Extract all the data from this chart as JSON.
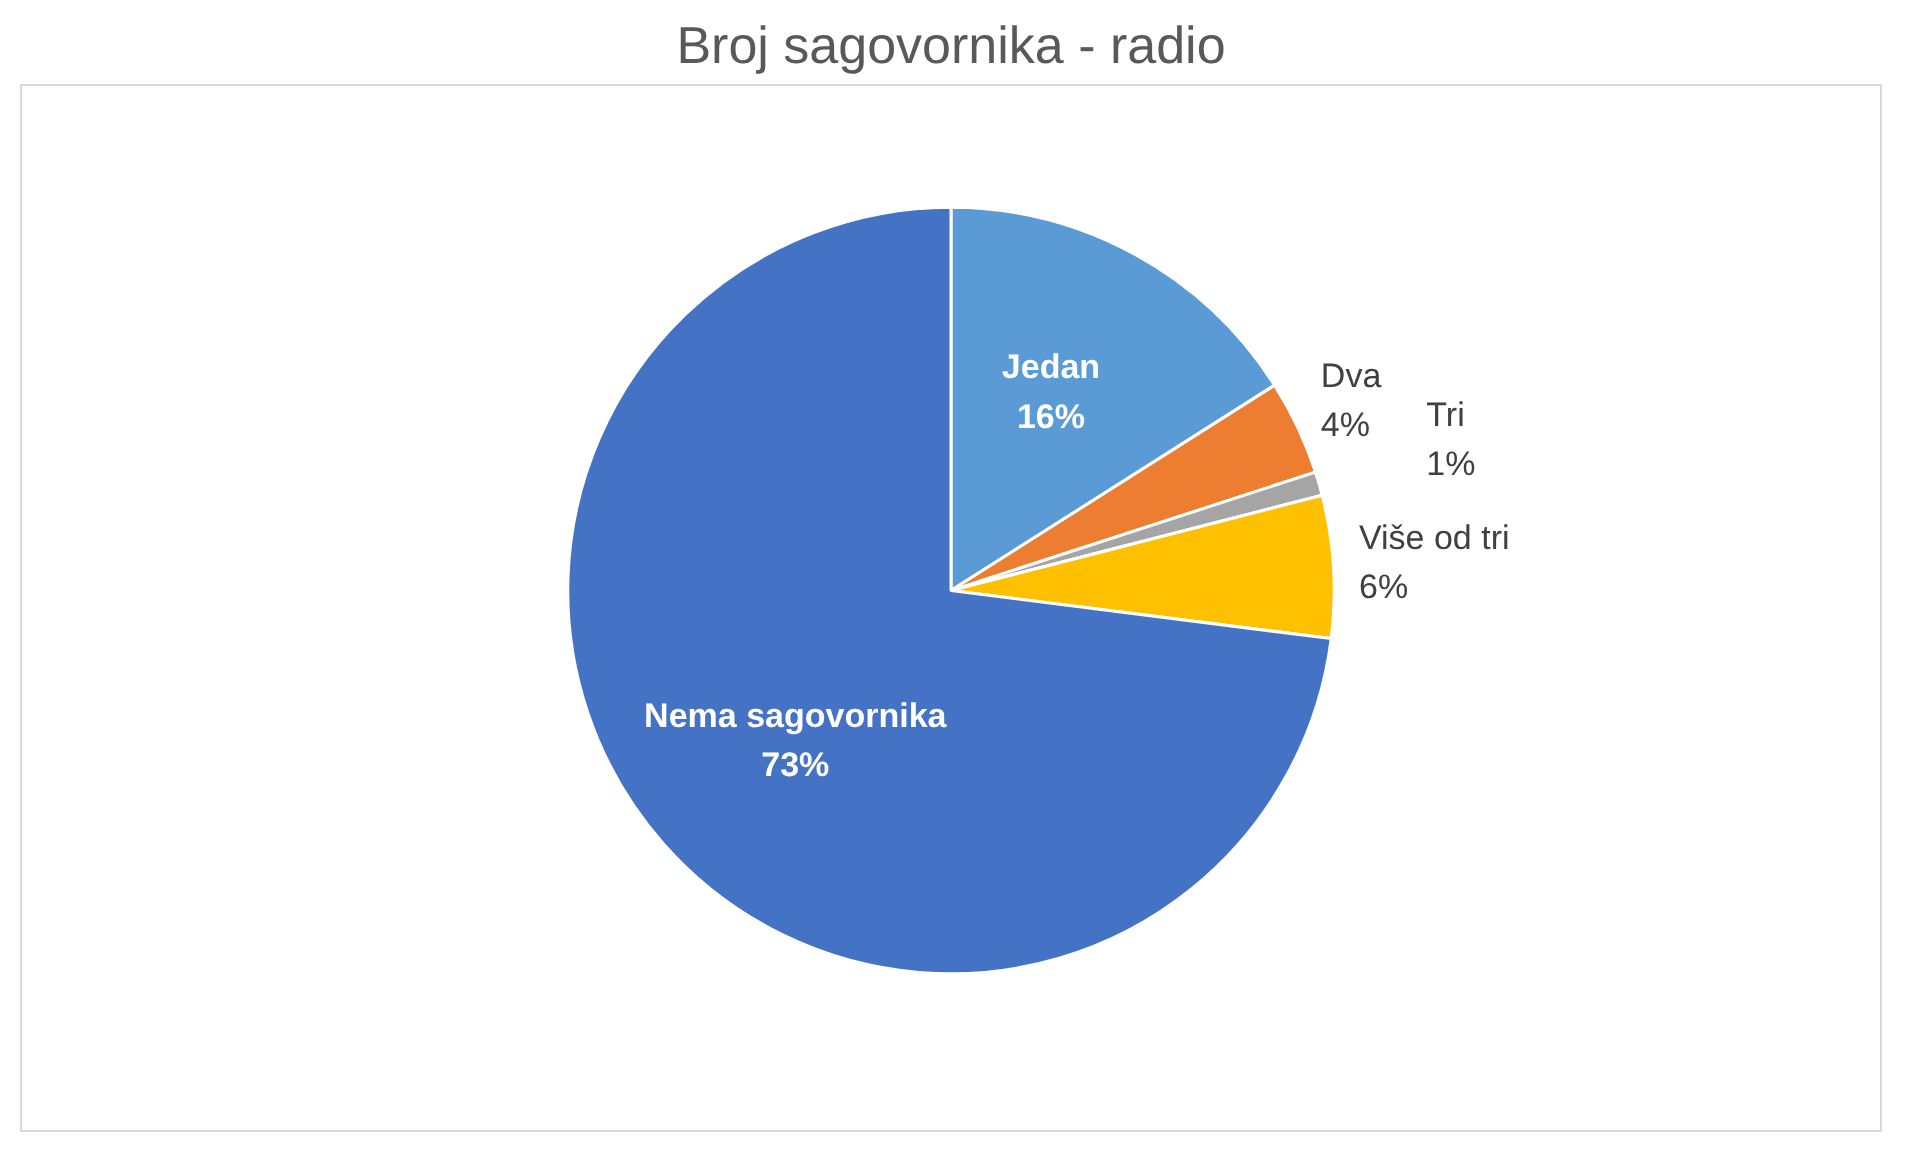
{
  "chart_data": {
    "type": "pie",
    "title": "Broj sagovornika - radio",
    "categories": [
      "Jedan",
      "Dva",
      "Tri",
      "Više od tri",
      "Nema sagovornika"
    ],
    "values": [
      16,
      4,
      1,
      6,
      73
    ],
    "colors": [
      "#5b9bd5",
      "#ed7d31",
      "#a5a5a5",
      "#ffc000",
      "#4472c4"
    ],
    "value_labels": [
      "16%",
      "4%",
      "1%",
      "6%",
      "73%"
    ]
  }
}
